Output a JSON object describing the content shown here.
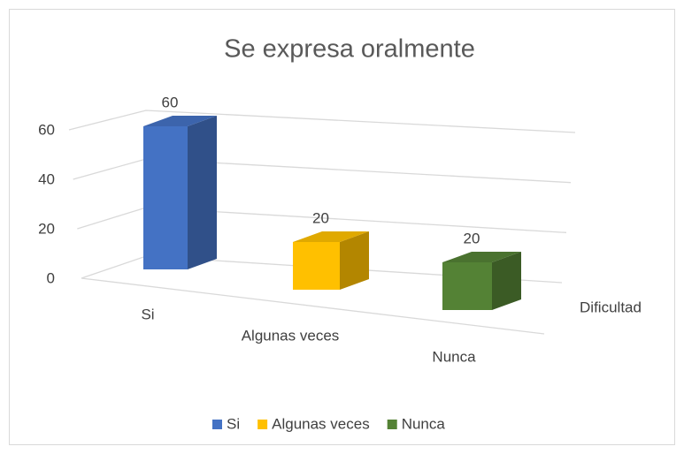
{
  "chart_data": {
    "type": "bar3d",
    "title": "Se expresa oralmente",
    "categories": [
      "Dificultad"
    ],
    "series": [
      {
        "name": "Si",
        "color": "#4472c4",
        "values": [
          60
        ]
      },
      {
        "name": "Algunas veces",
        "color": "#ffc000",
        "values": [
          20
        ]
      },
      {
        "name": "Nunca",
        "color": "#548235",
        "values": [
          20
        ]
      }
    ],
    "ylim": [
      0,
      60
    ],
    "yticks": [
      0,
      20,
      40,
      60
    ],
    "grid": true,
    "legend": "bottom"
  }
}
